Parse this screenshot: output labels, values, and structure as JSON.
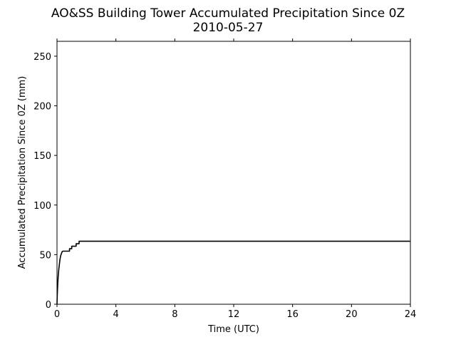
{
  "chart_data": {
    "type": "line",
    "title_line1": "AO&SS Building Tower Accumulated Precipitation Since 0Z",
    "title_line2": "2010-05-27",
    "xlabel": "Time (UTC)",
    "ylabel": "Accumulated Precipitation Since 0Z (mm)",
    "xlim": [
      0,
      24
    ],
    "ylim": [
      0,
      265
    ],
    "xticks": [
      0,
      4,
      8,
      12,
      16,
      20,
      24
    ],
    "yticks": [
      0,
      50,
      100,
      150,
      200,
      250
    ],
    "grid": false,
    "line_color": "#000000",
    "series": [
      {
        "x": [
          0,
          0.02,
          0.05,
          0.08,
          0.12,
          0.16,
          0.2,
          0.25,
          0.3,
          0.35,
          0.4,
          0.45,
          0.5,
          0.85,
          0.85,
          1.0,
          1.0,
          1.3,
          1.3,
          1.5,
          1.5,
          24
        ],
        "y": [
          0,
          10,
          20,
          28,
          35,
          40,
          45,
          49,
          51,
          53,
          53.5,
          53.5,
          53.5,
          53.5,
          56,
          56,
          58.5,
          58.5,
          61,
          61,
          63.5,
          63.5
        ]
      }
    ]
  }
}
